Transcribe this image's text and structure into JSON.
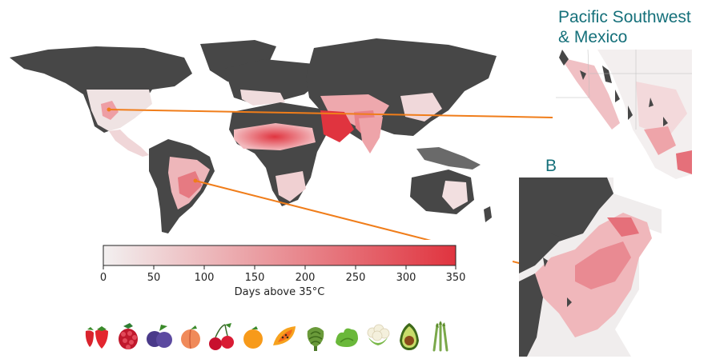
{
  "insets": {
    "pacific_title_line1": "Pacific Southwest",
    "pacific_title_line2": "& Mexico",
    "brazil_title": "Brazil"
  },
  "colorbar": {
    "label": "Days above 35°C",
    "ticks": [
      "0",
      "50",
      "100",
      "150",
      "200",
      "250",
      "300",
      "350"
    ],
    "min": 0,
    "max": 350,
    "color_low": "#f2f0f0",
    "color_high": "#e0343f"
  },
  "map_colors": {
    "excluded_land": "#474747",
    "ocean": "#ffffff",
    "low_heat": "#efe6e6",
    "high_heat": "#e0343f",
    "connector": "#f07d1a"
  },
  "crops": [
    "strawberry-icon",
    "raspberry-icon",
    "plum-icon",
    "peach-icon",
    "cherry-icon",
    "orange-icon",
    "papaya-icon",
    "artichoke-icon",
    "lettuce-icon",
    "cauliflower-icon",
    "avocado-icon",
    "asparagus-icon"
  ]
}
